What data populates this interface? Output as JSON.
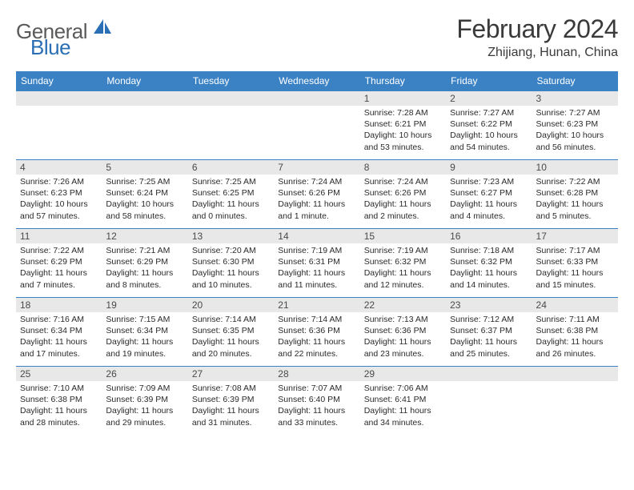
{
  "brand": {
    "part1": "General",
    "part2": "Blue"
  },
  "title": "February 2024",
  "location": "Zhijiang, Hunan, China",
  "colors": {
    "header_bg": "#3b82c4",
    "header_text": "#ffffff",
    "daynum_bg": "#e8e8e8",
    "border": "#3b82c4",
    "brand_grey": "#5a5a5a",
    "brand_blue": "#2a6fb5"
  },
  "weekdays": [
    "Sunday",
    "Monday",
    "Tuesday",
    "Wednesday",
    "Thursday",
    "Friday",
    "Saturday"
  ],
  "first_weekday_index": 4,
  "days_in_month": 29,
  "font": {
    "body_size_pt": 10.5,
    "header_size_pt": 12,
    "title_size_pt": 32
  },
  "days": {
    "1": {
      "sunrise": "7:28 AM",
      "sunset": "6:21 PM",
      "daylight": "10 hours and 53 minutes."
    },
    "2": {
      "sunrise": "7:27 AM",
      "sunset": "6:22 PM",
      "daylight": "10 hours and 54 minutes."
    },
    "3": {
      "sunrise": "7:27 AM",
      "sunset": "6:23 PM",
      "daylight": "10 hours and 56 minutes."
    },
    "4": {
      "sunrise": "7:26 AM",
      "sunset": "6:23 PM",
      "daylight": "10 hours and 57 minutes."
    },
    "5": {
      "sunrise": "7:25 AM",
      "sunset": "6:24 PM",
      "daylight": "10 hours and 58 minutes."
    },
    "6": {
      "sunrise": "7:25 AM",
      "sunset": "6:25 PM",
      "daylight": "11 hours and 0 minutes."
    },
    "7": {
      "sunrise": "7:24 AM",
      "sunset": "6:26 PM",
      "daylight": "11 hours and 1 minute."
    },
    "8": {
      "sunrise": "7:24 AM",
      "sunset": "6:26 PM",
      "daylight": "11 hours and 2 minutes."
    },
    "9": {
      "sunrise": "7:23 AM",
      "sunset": "6:27 PM",
      "daylight": "11 hours and 4 minutes."
    },
    "10": {
      "sunrise": "7:22 AM",
      "sunset": "6:28 PM",
      "daylight": "11 hours and 5 minutes."
    },
    "11": {
      "sunrise": "7:22 AM",
      "sunset": "6:29 PM",
      "daylight": "11 hours and 7 minutes."
    },
    "12": {
      "sunrise": "7:21 AM",
      "sunset": "6:29 PM",
      "daylight": "11 hours and 8 minutes."
    },
    "13": {
      "sunrise": "7:20 AM",
      "sunset": "6:30 PM",
      "daylight": "11 hours and 10 minutes."
    },
    "14": {
      "sunrise": "7:19 AM",
      "sunset": "6:31 PM",
      "daylight": "11 hours and 11 minutes."
    },
    "15": {
      "sunrise": "7:19 AM",
      "sunset": "6:32 PM",
      "daylight": "11 hours and 12 minutes."
    },
    "16": {
      "sunrise": "7:18 AM",
      "sunset": "6:32 PM",
      "daylight": "11 hours and 14 minutes."
    },
    "17": {
      "sunrise": "7:17 AM",
      "sunset": "6:33 PM",
      "daylight": "11 hours and 15 minutes."
    },
    "18": {
      "sunrise": "7:16 AM",
      "sunset": "6:34 PM",
      "daylight": "11 hours and 17 minutes."
    },
    "19": {
      "sunrise": "7:15 AM",
      "sunset": "6:34 PM",
      "daylight": "11 hours and 19 minutes."
    },
    "20": {
      "sunrise": "7:14 AM",
      "sunset": "6:35 PM",
      "daylight": "11 hours and 20 minutes."
    },
    "21": {
      "sunrise": "7:14 AM",
      "sunset": "6:36 PM",
      "daylight": "11 hours and 22 minutes."
    },
    "22": {
      "sunrise": "7:13 AM",
      "sunset": "6:36 PM",
      "daylight": "11 hours and 23 minutes."
    },
    "23": {
      "sunrise": "7:12 AM",
      "sunset": "6:37 PM",
      "daylight": "11 hours and 25 minutes."
    },
    "24": {
      "sunrise": "7:11 AM",
      "sunset": "6:38 PM",
      "daylight": "11 hours and 26 minutes."
    },
    "25": {
      "sunrise": "7:10 AM",
      "sunset": "6:38 PM",
      "daylight": "11 hours and 28 minutes."
    },
    "26": {
      "sunrise": "7:09 AM",
      "sunset": "6:39 PM",
      "daylight": "11 hours and 29 minutes."
    },
    "27": {
      "sunrise": "7:08 AM",
      "sunset": "6:39 PM",
      "daylight": "11 hours and 31 minutes."
    },
    "28": {
      "sunrise": "7:07 AM",
      "sunset": "6:40 PM",
      "daylight": "11 hours and 33 minutes."
    },
    "29": {
      "sunrise": "7:06 AM",
      "sunset": "6:41 PM",
      "daylight": "11 hours and 34 minutes."
    }
  },
  "labels": {
    "sunrise": "Sunrise:",
    "sunset": "Sunset:",
    "daylight": "Daylight:"
  }
}
